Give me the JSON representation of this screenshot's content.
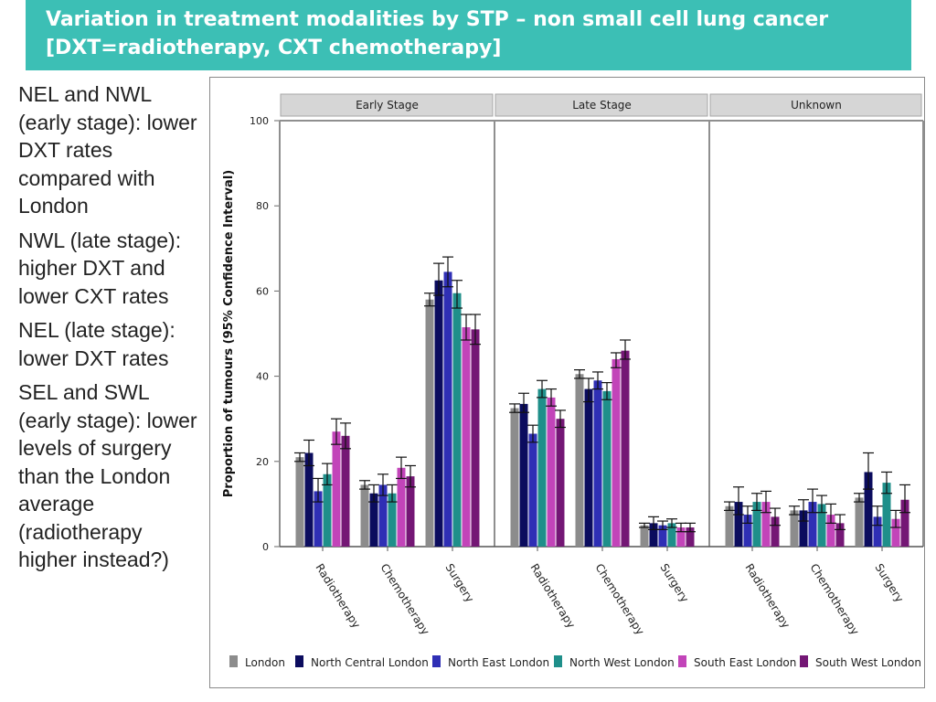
{
  "title": "Variation in treatment modalities by STP – non small cell lung cancer  [DXT=radiotherapy, CXT chemotherapy]",
  "notes": [
    "NEL and NWL (early stage): lower DXT rates compared with London",
    "NWL (late stage): higher DXT and lower CXT rates",
    "NEL (late stage): lower DXT rates",
    "SEL and SWL (early stage): lower levels of surgery than the London average (radiotherapy higher instead?)"
  ],
  "chart_data": {
    "type": "bar",
    "ylabel": "Proportion of tumours (95% Confidence Interval)",
    "ylim": [
      0,
      100
    ],
    "yticks": [
      0,
      20,
      40,
      60,
      80,
      100
    ],
    "panels": [
      "Early Stage",
      "Late Stage",
      "Unknown"
    ],
    "categories": [
      "Radiotherapy",
      "Chemotherapy",
      "Surgery"
    ],
    "legend_position": "bottom",
    "series": [
      {
        "name": "London",
        "color": "#8c8c8c",
        "values": [
          [
            21,
            14.5,
            58
          ],
          [
            32.5,
            40.5,
            5
          ],
          [
            9.5,
            8.5,
            11.5
          ]
        ],
        "ci": [
          [
            [
              20,
              22
            ],
            [
              13.5,
              15.5
            ],
            [
              56.5,
              59.5
            ]
          ],
          [
            [
              31.5,
              33.5
            ],
            [
              39.5,
              41.5
            ],
            [
              4.5,
              5.5
            ]
          ],
          [
            [
              8.5,
              10.5
            ],
            [
              7.5,
              9.5
            ],
            [
              10.5,
              12.5
            ]
          ]
        ]
      },
      {
        "name": "North Central London",
        "color": "#0b0c5e",
        "values": [
          [
            22,
            12.5,
            62.5
          ],
          [
            33.5,
            37,
            5.5
          ],
          [
            10.5,
            8.5,
            17.5
          ]
        ],
        "ci": [
          [
            [
              19,
              25
            ],
            [
              10.5,
              14.5
            ],
            [
              59,
              66.5
            ]
          ],
          [
            [
              31.5,
              36
            ],
            [
              34,
              39.5
            ],
            [
              4,
              7
            ]
          ],
          [
            [
              7.5,
              14
            ],
            [
              6,
              11
            ],
            [
              13.5,
              22
            ]
          ]
        ]
      },
      {
        "name": "North East London",
        "color": "#2f2fb5",
        "values": [
          [
            13,
            14.5,
            64.5
          ],
          [
            26.5,
            39,
            5
          ],
          [
            7.5,
            10.5,
            7
          ]
        ],
        "ci": [
          [
            [
              10.5,
              16
            ],
            [
              12,
              17
            ],
            [
              61,
              68
            ]
          ],
          [
            [
              24.5,
              28.5
            ],
            [
              37,
              41
            ],
            [
              4,
              6
            ]
          ],
          [
            [
              5.5,
              9.5
            ],
            [
              8,
              13.5
            ],
            [
              5,
              9.5
            ]
          ]
        ]
      },
      {
        "name": "North West London",
        "color": "#1f8f8a",
        "values": [
          [
            17,
            12.5,
            59.5
          ],
          [
            37,
            36.5,
            5.5
          ],
          [
            10.5,
            10,
            15
          ]
        ],
        "ci": [
          [
            [
              14.5,
              19.5
            ],
            [
              10.5,
              14.5
            ],
            [
              56,
              62.5
            ]
          ],
          [
            [
              35,
              39
            ],
            [
              34.5,
              38.5
            ],
            [
              4.5,
              6.5
            ]
          ],
          [
            [
              8.5,
              12.5
            ],
            [
              8,
              12
            ],
            [
              12.5,
              17.5
            ]
          ]
        ]
      },
      {
        "name": "South East London",
        "color": "#c244b9",
        "values": [
          [
            27,
            18.5,
            51.5
          ],
          [
            35,
            44,
            4.5
          ],
          [
            10.5,
            7.5,
            6.5
          ]
        ],
        "ci": [
          [
            [
              24,
              30
            ],
            [
              16,
              21
            ],
            [
              48.5,
              54.5
            ]
          ],
          [
            [
              33,
              37
            ],
            [
              42,
              45.5
            ],
            [
              3.5,
              5.5
            ]
          ],
          [
            [
              8,
              13
            ],
            [
              5.5,
              10
            ],
            [
              4.5,
              8.5
            ]
          ]
        ]
      },
      {
        "name": "South West London",
        "color": "#741775",
        "values": [
          [
            26,
            16.5,
            51
          ],
          [
            30,
            46,
            4.5
          ],
          [
            7,
            5.5,
            11
          ]
        ],
        "ci": [
          [
            [
              23,
              29
            ],
            [
              14,
              19
            ],
            [
              47.5,
              54.5
            ]
          ],
          [
            [
              28,
              32
            ],
            [
              44,
              48.5
            ],
            [
              3.5,
              5.5
            ]
          ],
          [
            [
              5,
              9
            ],
            [
              4,
              7.5
            ],
            [
              8,
              14.5
            ]
          ]
        ]
      }
    ]
  }
}
